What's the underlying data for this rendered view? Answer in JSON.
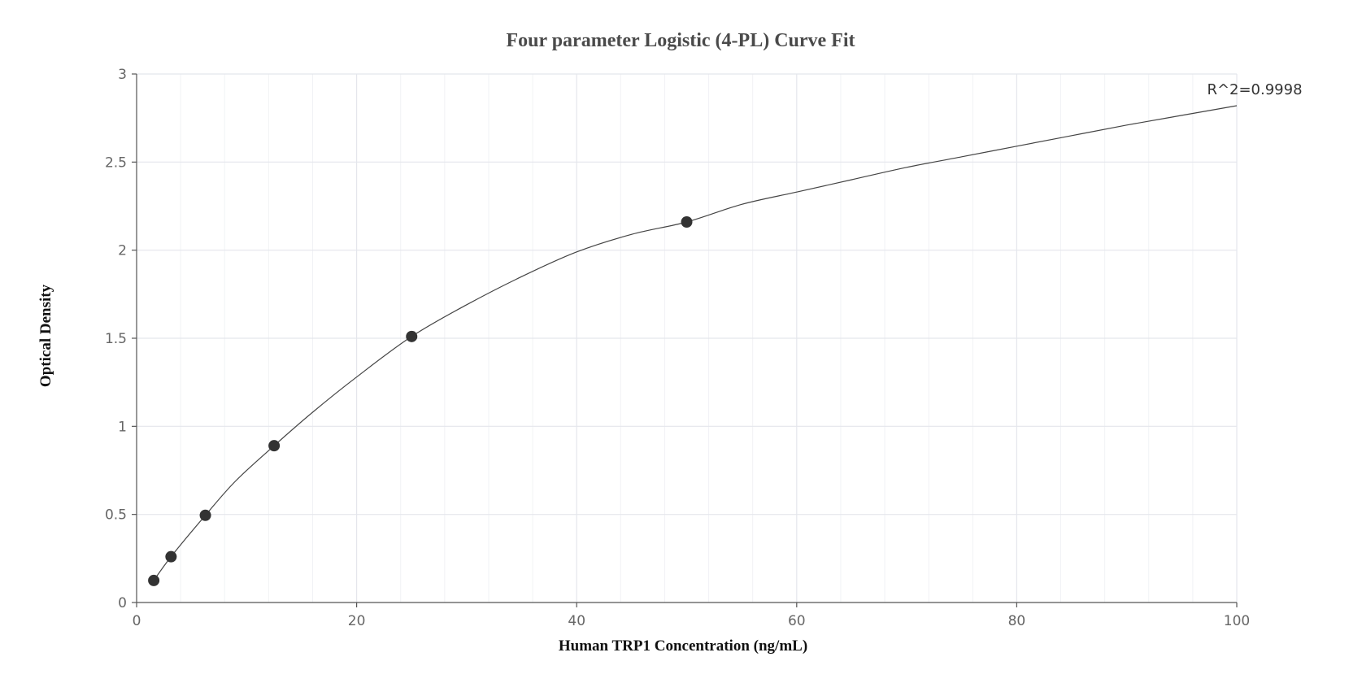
{
  "chart_data": {
    "type": "scatter",
    "title": "Four parameter Logistic (4-PL) Curve Fit",
    "xlabel": "Human TRP1 Concentration (ng/mL)",
    "ylabel": "Optical Density",
    "xlim": [
      0,
      100
    ],
    "ylim": [
      0,
      3
    ],
    "x_ticks": [
      0,
      20,
      40,
      60,
      80,
      100
    ],
    "y_ticks": [
      0,
      0.5,
      1,
      1.5,
      2,
      2.5,
      3
    ],
    "x_tick_labels": [
      "0",
      "20",
      "40",
      "60",
      "80",
      "100"
    ],
    "y_tick_labels": [
      "0",
      "0.5",
      "1",
      "1.5",
      "2",
      "2.5",
      "3"
    ],
    "grid": true,
    "series": [
      {
        "x": [
          1.56,
          3.13,
          6.25,
          12.5,
          25,
          50
        ],
        "y": [
          0.125,
          0.26,
          0.495,
          0.89,
          1.51,
          2.16
        ]
      }
    ],
    "curve": {
      "x": [
        1.56,
        3.13,
        6.25,
        9.0,
        12.5,
        16.0,
        20.0,
        25.0,
        30.0,
        35.0,
        40.0,
        45.0,
        50.0,
        55.0,
        60.0,
        65.0,
        70.0,
        75.0,
        80.0,
        85.0,
        90.0,
        95.0,
        100.0
      ],
      "y": [
        0.125,
        0.26,
        0.495,
        0.69,
        0.89,
        1.08,
        1.28,
        1.51,
        1.69,
        1.85,
        1.99,
        2.09,
        2.16,
        2.26,
        2.33,
        2.4,
        2.47,
        2.53,
        2.59,
        2.65,
        2.71,
        2.765,
        2.82
      ]
    },
    "colors": {
      "marker": "#333333",
      "curve": "#444444",
      "grid": "#e4e6ec",
      "minor_grid": "#f1f2f5",
      "axis": "#555555"
    },
    "annotation": {
      "text": "R^2=0.9998"
    }
  }
}
